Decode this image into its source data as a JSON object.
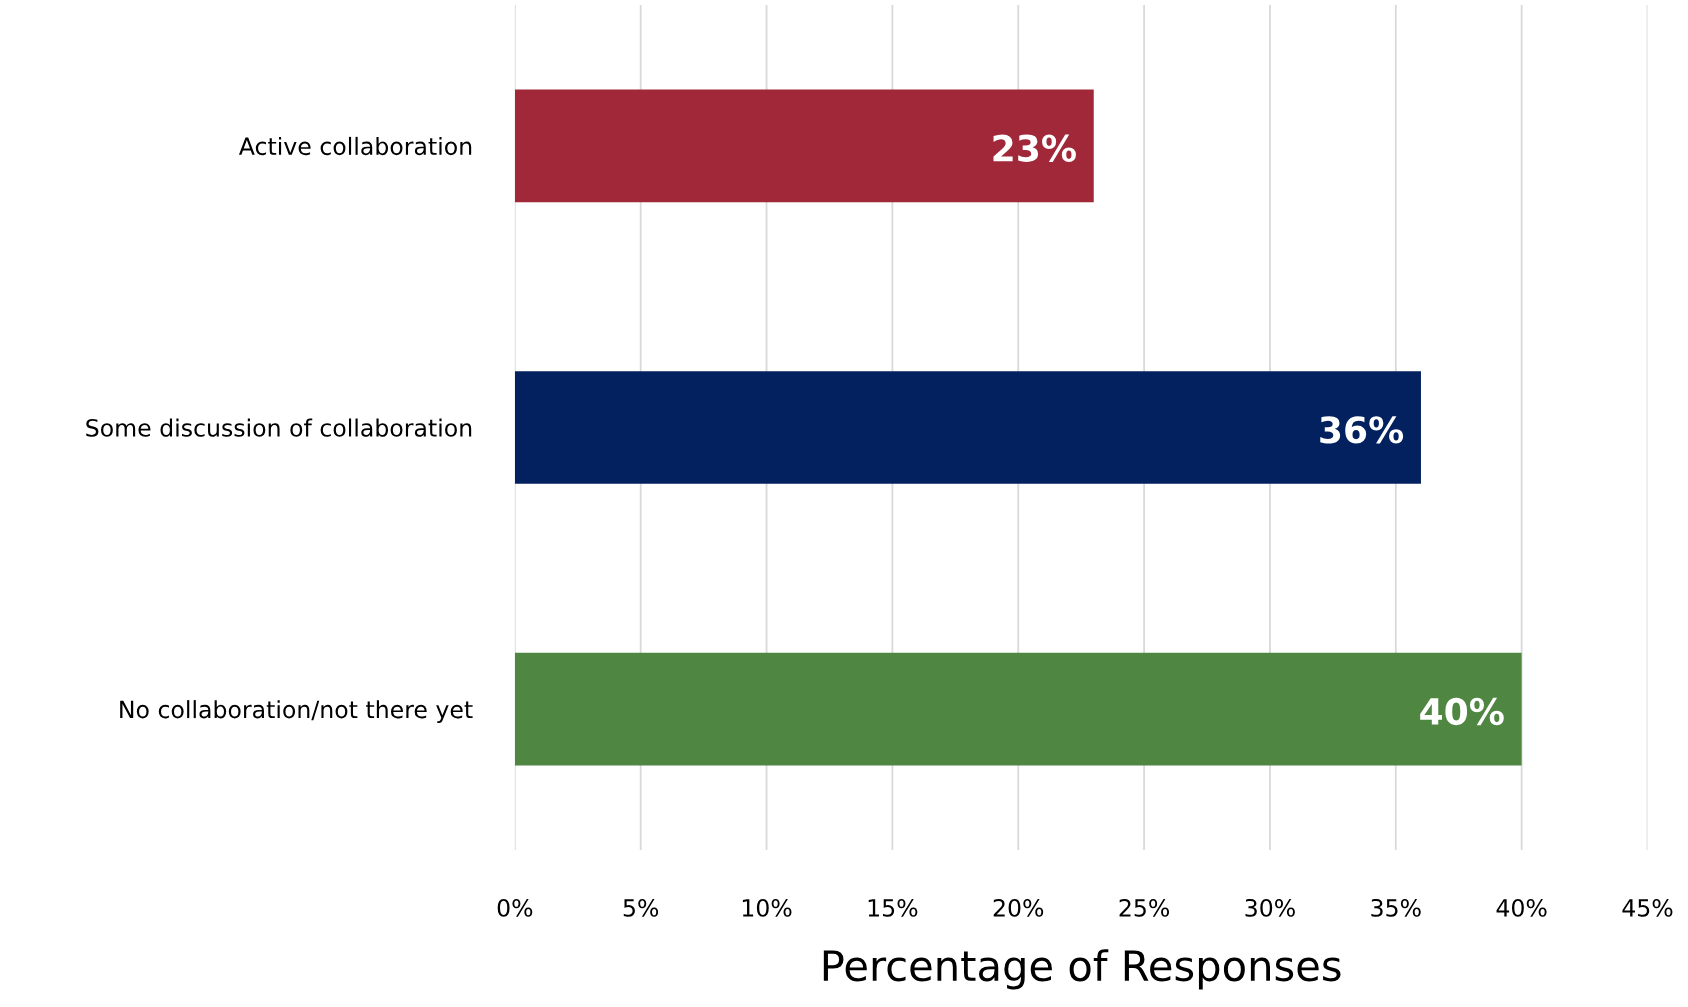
{
  "chart_data": {
    "type": "bar",
    "orientation": "horizontal",
    "xlabel": "Percentage of Responses",
    "categories": [
      "Active collaboration",
      "Some discussion of collaboration",
      "No collaboration/not there yet"
    ],
    "values": [
      23,
      36,
      40
    ],
    "colors": [
      "#a12838",
      "#03215f",
      "#4f8742"
    ],
    "value_labels": [
      "23%",
      "36%",
      "40%"
    ],
    "xlim": [
      0,
      45
    ],
    "xticks": [
      {
        "value": 0,
        "label": "0%"
      },
      {
        "value": 5,
        "label": "5%"
      },
      {
        "value": 10,
        "label": "10%"
      },
      {
        "value": 15,
        "label": "15%"
      },
      {
        "value": 20,
        "label": "20%"
      },
      {
        "value": 25,
        "label": "25%"
      },
      {
        "value": 30,
        "label": "30%"
      },
      {
        "value": 35,
        "label": "35%"
      },
      {
        "value": 40,
        "label": "40%"
      },
      {
        "value": 45,
        "label": "45%"
      }
    ],
    "grid": "x",
    "legend": false
  }
}
